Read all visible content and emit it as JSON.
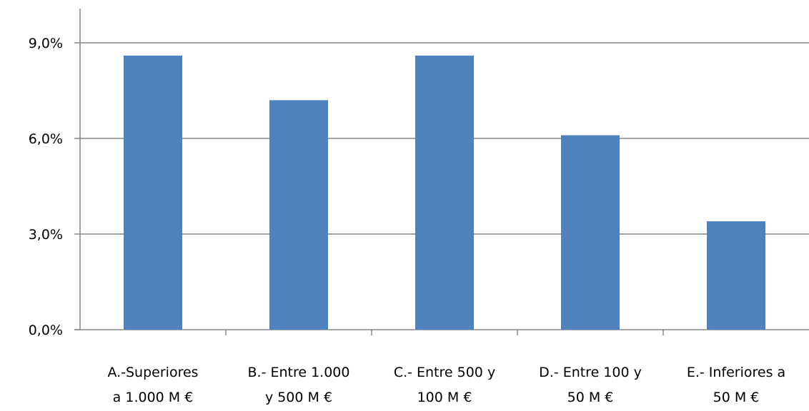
{
  "chart_data": {
    "type": "bar",
    "categories": [
      [
        "A.-Superiores",
        "a 1.000 M €"
      ],
      [
        "B.- Entre 1.000",
        "y 500 M €"
      ],
      [
        "C.- Entre 500 y",
        "100 M €"
      ],
      [
        "D.- Entre 100 y",
        "50 M €"
      ],
      [
        "E.- Inferiores a",
        "50 M €"
      ]
    ],
    "series": [
      {
        "values": [
          8.6,
          7.2,
          8.6,
          6.1,
          3.4
        ]
      }
    ],
    "ylim": [
      0,
      9
    ],
    "y_ticks": [
      0,
      3,
      6,
      9
    ],
    "y_tick_labels": [
      "0,0%",
      "3,0%",
      "6,0%",
      "9,0%"
    ],
    "grid": true,
    "colors": {
      "bar": "#4F81BD",
      "grid": "#868686",
      "axis": "#868686"
    }
  }
}
